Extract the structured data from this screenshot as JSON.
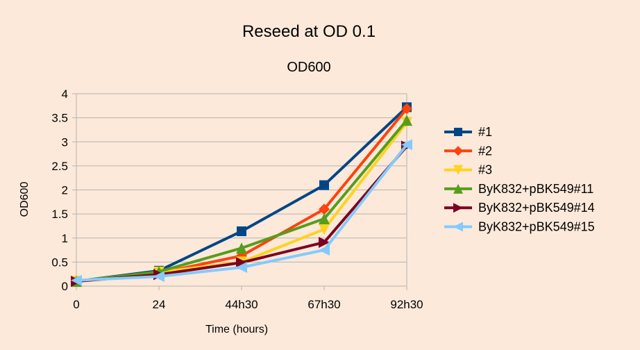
{
  "chart_data": {
    "type": "line",
    "title": "Reseed at OD 0.1",
    "subtitle": "OD600",
    "xlabel": "Time (hours)",
    "ylabel": "OD600",
    "categories": [
      "0",
      "24",
      "44h30",
      "67h30",
      "92h30"
    ],
    "ylim": [
      0,
      4
    ],
    "yticks": [
      "0",
      "0.5",
      "1",
      "1.5",
      "2",
      "2.5",
      "3",
      "3.5",
      "4"
    ],
    "grid": true,
    "legend_position": "right",
    "series": [
      {
        "name": "#1",
        "values": [
          0.1,
          0.32,
          1.14,
          2.1,
          3.72
        ],
        "color": "#004586",
        "marker": "square"
      },
      {
        "name": "#2",
        "values": [
          0.1,
          0.27,
          0.63,
          1.6,
          3.69
        ],
        "color": "#ff420e",
        "marker": "diamond"
      },
      {
        "name": "#3",
        "values": [
          0.1,
          0.29,
          0.5,
          1.18,
          3.4
        ],
        "color": "#ffd320",
        "marker": "triangle-down"
      },
      {
        "name": "ByK832+pBK549#11",
        "values": [
          0.1,
          0.3,
          0.79,
          1.4,
          3.45
        ],
        "color": "#579d1c",
        "marker": "triangle-up"
      },
      {
        "name": "ByK832+pBK549#14",
        "values": [
          0.1,
          0.24,
          0.49,
          0.91,
          2.91
        ],
        "color": "#7e0021",
        "marker": "triangle-right"
      },
      {
        "name": "ByK832+pBK549#15",
        "values": [
          0.12,
          0.2,
          0.39,
          0.75,
          2.94
        ],
        "color": "#83caff",
        "marker": "triangle-left"
      }
    ]
  }
}
